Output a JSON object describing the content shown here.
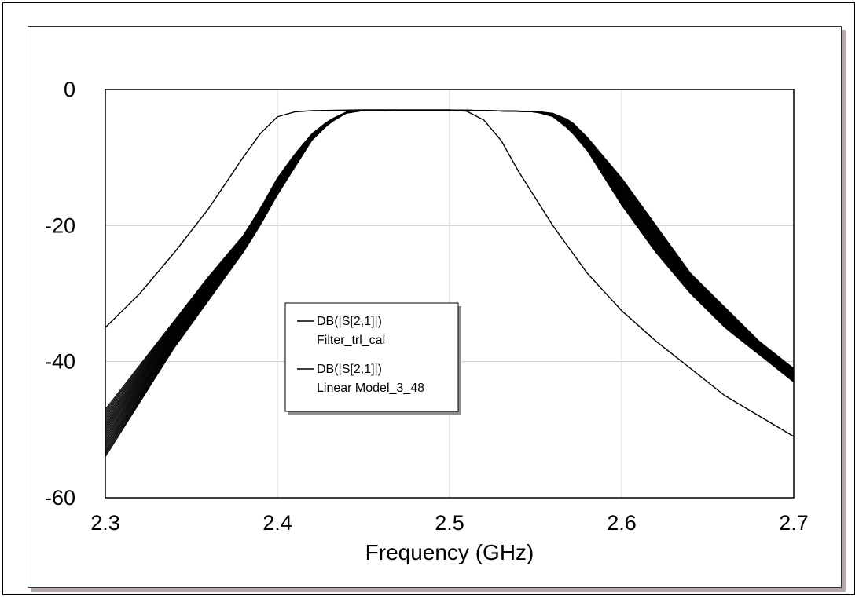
{
  "chart_data": {
    "type": "line",
    "title": "",
    "xlabel": "Frequency (GHz)",
    "ylabel": "",
    "xlim": [
      2.3,
      2.7
    ],
    "ylim": [
      -60,
      0
    ],
    "x_ticks": [
      "2.3",
      "2.4",
      "2.5",
      "2.6",
      "2.7"
    ],
    "y_ticks": [
      "0",
      "-20",
      "-40",
      "-60"
    ],
    "grid": true,
    "legend_position": "center-left",
    "legend": [
      {
        "line1": "DB(|S[2,1]|)",
        "line2": "Filter_trl_cal"
      },
      {
        "line1": "DB(|S[2,1]|)",
        "line2": "Linear Model_3_48"
      }
    ],
    "series": [
      {
        "name": "DB(|S[2,1]|) Filter_trl_cal",
        "x": [
          2.3,
          2.32,
          2.34,
          2.36,
          2.38,
          2.39,
          2.4,
          2.41,
          2.42,
          2.45,
          2.5,
          2.51,
          2.52,
          2.53,
          2.54,
          2.56,
          2.58,
          2.6,
          2.62,
          2.64,
          2.66,
          2.68,
          2.7
        ],
        "y": [
          -35,
          -30,
          -24,
          -17.5,
          -10,
          -6.5,
          -4,
          -3.3,
          -3.1,
          -3.0,
          -3.0,
          -3.2,
          -4.5,
          -7.5,
          -12,
          -20,
          -27,
          -32.5,
          -37,
          -41,
          -45,
          -48,
          -51
        ]
      },
      {
        "name": "DB(|S[2,1]|) Linear Model_3_48 (lower bound)",
        "x": [
          2.3,
          2.32,
          2.34,
          2.36,
          2.38,
          2.39,
          2.4,
          2.41,
          2.42,
          2.43,
          2.44,
          2.45,
          2.5,
          2.55,
          2.56,
          2.57,
          2.58,
          2.6,
          2.62,
          2.64,
          2.66,
          2.68,
          2.7
        ],
        "y": [
          -54,
          -46,
          -38,
          -31,
          -24,
          -20,
          -15.5,
          -11.5,
          -7.5,
          -5,
          -3.5,
          -3.1,
          -3.0,
          -3.3,
          -4,
          -6,
          -9,
          -17,
          -24,
          -30,
          -35,
          -39,
          -43
        ]
      },
      {
        "name": "DB(|S[2,1]|) Linear Model_3_48 (upper bound)",
        "x": [
          2.3,
          2.32,
          2.34,
          2.36,
          2.38,
          2.39,
          2.4,
          2.41,
          2.42,
          2.43,
          2.44,
          2.45,
          2.5,
          2.55,
          2.56,
          2.57,
          2.58,
          2.6,
          2.62,
          2.64,
          2.66,
          2.68,
          2.7
        ],
        "y": [
          -47,
          -40.5,
          -34,
          -27.5,
          -21.5,
          -17.5,
          -13,
          -9.5,
          -6.5,
          -4.5,
          -3.3,
          -3.0,
          -3.0,
          -3.2,
          -3.5,
          -4.5,
          -7,
          -13,
          -20,
          -27,
          -32,
          -37,
          -41
        ]
      }
    ]
  }
}
